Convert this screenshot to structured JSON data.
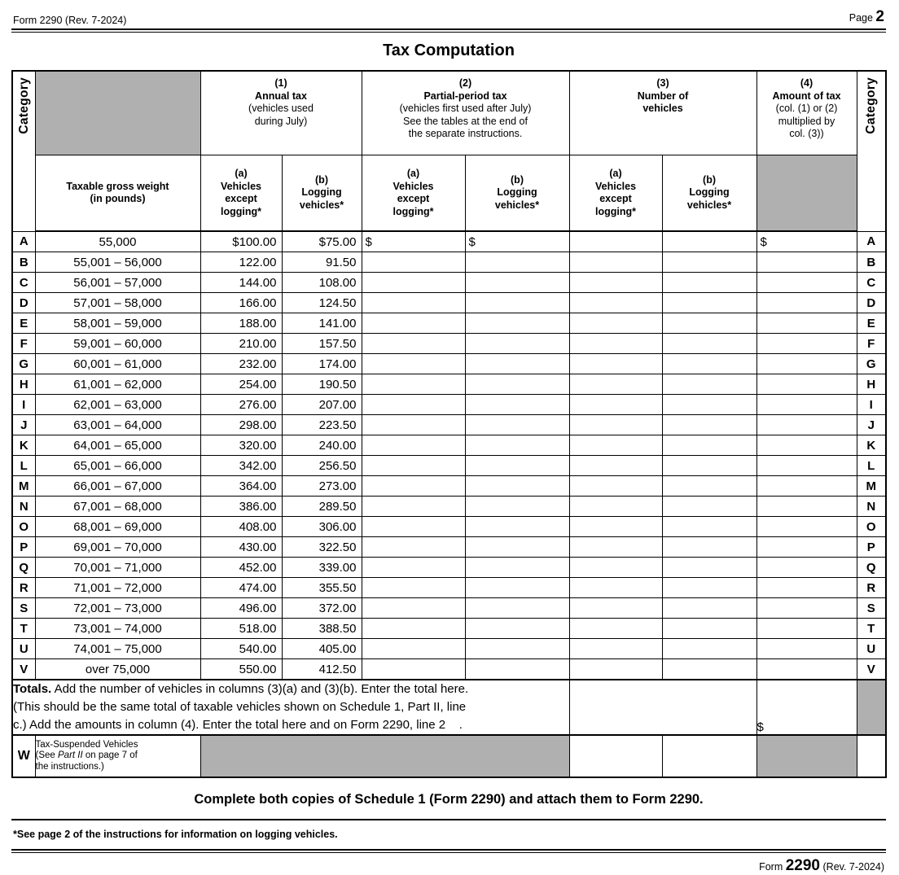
{
  "colors": {
    "shading": "#b0b0b0"
  },
  "page_header": {
    "form_rev": "Form 2290 (Rev. 7-2024)",
    "page_label": "Page",
    "page_number": "2"
  },
  "title": "Tax Computation",
  "table": {
    "category_label": "Category",
    "weight_header": {
      "line1": "Taxable gross weight",
      "line2": "(in pounds)"
    },
    "col1": {
      "num": "(1)",
      "title": "Annual tax",
      "desc": [
        "(vehicles used",
        "during July)"
      ]
    },
    "col2": {
      "num": "(2)",
      "title": "Partial-period tax",
      "desc": [
        "(vehicles first used after July)",
        "See the tables at the end of",
        "the separate instructions."
      ]
    },
    "col3": {
      "num": "(3)",
      "title_lines": [
        "Number of",
        "vehicles"
      ]
    },
    "col4": {
      "num": "(4)",
      "title": "Amount of tax",
      "desc": [
        "(col. (1) or (2)",
        "multiplied by",
        "col. (3))"
      ]
    },
    "sub_a": {
      "num": "(a)",
      "lines": [
        "Vehicles",
        "except",
        "logging*"
      ]
    },
    "sub_b": {
      "num": "(b)",
      "lines": [
        "Logging",
        "vehicles*"
      ]
    },
    "rows": [
      {
        "cat": "A",
        "weight": "55,000",
        "annual_a": "$100.00",
        "annual_b": "$75.00",
        "partial_a": "$",
        "partial_b": "$",
        "num_a": "",
        "num_b": "",
        "amount": "$"
      },
      {
        "cat": "B",
        "weight": "55,001 – 56,000",
        "annual_a": "122.00",
        "annual_b": "91.50",
        "partial_a": "",
        "partial_b": "",
        "num_a": "",
        "num_b": "",
        "amount": ""
      },
      {
        "cat": "C",
        "weight": "56,001 – 57,000",
        "annual_a": "144.00",
        "annual_b": "108.00",
        "partial_a": "",
        "partial_b": "",
        "num_a": "",
        "num_b": "",
        "amount": ""
      },
      {
        "cat": "D",
        "weight": "57,001 – 58,000",
        "annual_a": "166.00",
        "annual_b": "124.50",
        "partial_a": "",
        "partial_b": "",
        "num_a": "",
        "num_b": "",
        "amount": ""
      },
      {
        "cat": "E",
        "weight": "58,001 – 59,000",
        "annual_a": "188.00",
        "annual_b": "141.00",
        "partial_a": "",
        "partial_b": "",
        "num_a": "",
        "num_b": "",
        "amount": ""
      },
      {
        "cat": "F",
        "weight": "59,001 – 60,000",
        "annual_a": "210.00",
        "annual_b": "157.50",
        "partial_a": "",
        "partial_b": "",
        "num_a": "",
        "num_b": "",
        "amount": ""
      },
      {
        "cat": "G",
        "weight": "60,001 – 61,000",
        "annual_a": "232.00",
        "annual_b": "174.00",
        "partial_a": "",
        "partial_b": "",
        "num_a": "",
        "num_b": "",
        "amount": ""
      },
      {
        "cat": "H",
        "weight": "61,001 – 62,000",
        "annual_a": "254.00",
        "annual_b": "190.50",
        "partial_a": "",
        "partial_b": "",
        "num_a": "",
        "num_b": "",
        "amount": ""
      },
      {
        "cat": "I",
        "weight": "62,001 – 63,000",
        "annual_a": "276.00",
        "annual_b": "207.00",
        "partial_a": "",
        "partial_b": "",
        "num_a": "",
        "num_b": "",
        "amount": ""
      },
      {
        "cat": "J",
        "weight": "63,001 – 64,000",
        "annual_a": "298.00",
        "annual_b": "223.50",
        "partial_a": "",
        "partial_b": "",
        "num_a": "",
        "num_b": "",
        "amount": ""
      },
      {
        "cat": "K",
        "weight": "64,001 – 65,000",
        "annual_a": "320.00",
        "annual_b": "240.00",
        "partial_a": "",
        "partial_b": "",
        "num_a": "",
        "num_b": "",
        "amount": ""
      },
      {
        "cat": "L",
        "weight": "65,001 – 66,000",
        "annual_a": "342.00",
        "annual_b": "256.50",
        "partial_a": "",
        "partial_b": "",
        "num_a": "",
        "num_b": "",
        "amount": ""
      },
      {
        "cat": "M",
        "weight": "66,001 – 67,000",
        "annual_a": "364.00",
        "annual_b": "273.00",
        "partial_a": "",
        "partial_b": "",
        "num_a": "",
        "num_b": "",
        "amount": ""
      },
      {
        "cat": "N",
        "weight": "67,001 – 68,000",
        "annual_a": "386.00",
        "annual_b": "289.50",
        "partial_a": "",
        "partial_b": "",
        "num_a": "",
        "num_b": "",
        "amount": ""
      },
      {
        "cat": "O",
        "weight": "68,001 – 69,000",
        "annual_a": "408.00",
        "annual_b": "306.00",
        "partial_a": "",
        "partial_b": "",
        "num_a": "",
        "num_b": "",
        "amount": ""
      },
      {
        "cat": "P",
        "weight": "69,001 – 70,000",
        "annual_a": "430.00",
        "annual_b": "322.50",
        "partial_a": "",
        "partial_b": "",
        "num_a": "",
        "num_b": "",
        "amount": ""
      },
      {
        "cat": "Q",
        "weight": "70,001 – 71,000",
        "annual_a": "452.00",
        "annual_b": "339.00",
        "partial_a": "",
        "partial_b": "",
        "num_a": "",
        "num_b": "",
        "amount": ""
      },
      {
        "cat": "R",
        "weight": "71,001 – 72,000",
        "annual_a": "474.00",
        "annual_b": "355.50",
        "partial_a": "",
        "partial_b": "",
        "num_a": "",
        "num_b": "",
        "amount": ""
      },
      {
        "cat": "S",
        "weight": "72,001 – 73,000",
        "annual_a": "496.00",
        "annual_b": "372.00",
        "partial_a": "",
        "partial_b": "",
        "num_a": "",
        "num_b": "",
        "amount": ""
      },
      {
        "cat": "T",
        "weight": "73,001 – 74,000",
        "annual_a": "518.00",
        "annual_b": "388.50",
        "partial_a": "",
        "partial_b": "",
        "num_a": "",
        "num_b": "",
        "amount": ""
      },
      {
        "cat": "U",
        "weight": "74,001 – 75,000",
        "annual_a": "540.00",
        "annual_b": "405.00",
        "partial_a": "",
        "partial_b": "",
        "num_a": "",
        "num_b": "",
        "amount": ""
      },
      {
        "cat": "V",
        "weight": "over 75,000",
        "annual_a": "550.00",
        "annual_b": "412.50",
        "partial_a": "",
        "partial_b": "",
        "num_a": "",
        "num_b": "",
        "amount": ""
      }
    ],
    "totals": {
      "line1_bold": "Totals.",
      "line1_rest": " Add the number of vehicles in columns (3)(a) and (3)(b). Enter the total here.",
      "line2": "(This should be the same total of taxable vehicles shown on Schedule 1, Part II, line",
      "line3": "c.) Add the amounts in column (4). Enter the total here and on Form 2290, line 2    .",
      "amount_prefix": "$"
    },
    "w_row": {
      "cat": "W",
      "label_line1": "Tax-Suspended Vehicles",
      "label_line2_pre": "(See ",
      "label_line2_italic": "Part II",
      "label_line2_post": " on page 7 of",
      "label_line3": "the instructions.)"
    }
  },
  "footer": {
    "complete_note": "Complete both copies of Schedule 1 (Form 2290) and attach them to Form 2290.",
    "logging_note": "*See page 2 of the instructions for information on logging vehicles.",
    "form_word": "Form",
    "form_number": "2290",
    "revision": "(Rev. 7-2024)"
  }
}
